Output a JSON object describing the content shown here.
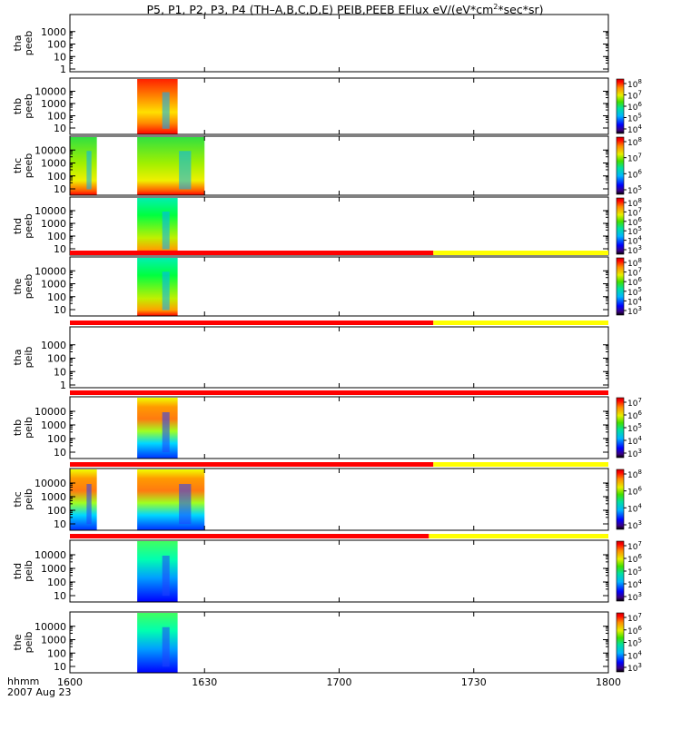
{
  "title_main": "P5, P1, P2, P3, P4 (TH–A,B,C,D,E) PEIB,PEEB EFlux eV/(eV*cm",
  "title_sup": "2",
  "title_tail": "*sec*sr)",
  "x_unit": "hhmm",
  "date": "2007 Aug 23",
  "chart_data": {
    "type": "heatmap",
    "title": "P5, P1, P2, P3, P4 (TH-A,B,C,D,E) PEIB,PEEB EFlux eV/(eV*cm^2*sec*sr)",
    "xlim": [
      "16:00",
      "18:00"
    ],
    "x_ticks": [
      "1600",
      "1630",
      "1700",
      "1730",
      "1800"
    ],
    "y_scale": "log",
    "y_unit": "eV",
    "panels": [
      {
        "probe": "tha",
        "instrument": "peeb",
        "y_ticks": [
          "1",
          "10",
          "100",
          "1000"
        ],
        "colorbar_ticks": [],
        "data_intervals": [],
        "status_bar": false
      },
      {
        "probe": "thb",
        "instrument": "peeb",
        "y_ticks": [
          "10",
          "100",
          "1000",
          "10000"
        ],
        "colorbar_ticks": [
          {
            "b": "10",
            "e": "8"
          },
          {
            "b": "10",
            "e": "7"
          },
          {
            "b": "10",
            "e": "6"
          },
          {
            "b": "10",
            "e": "5"
          },
          {
            "b": "10",
            "e": "4"
          }
        ],
        "data_intervals": [
          [
            "16:15",
            "16:24"
          ]
        ],
        "status_bar": false
      },
      {
        "probe": "thc",
        "instrument": "peeb",
        "y_ticks": [
          "10",
          "100",
          "1000",
          "10000"
        ],
        "colorbar_ticks": [
          {
            "b": "10",
            "e": "8"
          },
          {
            "b": "10",
            "e": "7"
          },
          {
            "b": "10",
            "e": "6"
          },
          {
            "b": "10",
            "e": "5"
          }
        ],
        "data_intervals": [
          [
            "16:00",
            "16:06"
          ],
          [
            "16:15",
            "16:30"
          ]
        ],
        "status_bar": false
      },
      {
        "probe": "thd",
        "instrument": "peeb",
        "y_ticks": [
          "10",
          "100",
          "1000",
          "10000"
        ],
        "colorbar_ticks": [
          {
            "b": "10",
            "e": "8"
          },
          {
            "b": "10",
            "e": "7"
          },
          {
            "b": "10",
            "e": "6"
          },
          {
            "b": "10",
            "e": "5"
          },
          {
            "b": "10",
            "e": "4"
          },
          {
            "b": "10",
            "e": "3"
          }
        ],
        "data_intervals": [
          [
            "16:15",
            "16:24"
          ]
        ],
        "status_bar": false
      },
      {
        "probe": "the",
        "instrument": "peeb",
        "y_ticks": [
          "10",
          "100",
          "1000",
          "10000"
        ],
        "colorbar_ticks": [
          {
            "b": "10",
            "e": "8"
          },
          {
            "b": "10",
            "e": "7"
          },
          {
            "b": "10",
            "e": "6"
          },
          {
            "b": "10",
            "e": "5"
          },
          {
            "b": "10",
            "e": "4"
          },
          {
            "b": "10",
            "e": "3"
          }
        ],
        "data_intervals": [
          [
            "16:15",
            "16:24"
          ]
        ],
        "status_bar": true,
        "status_red_until": "17:21"
      },
      {
        "probe": "tha",
        "instrument": "peib",
        "y_ticks": [
          "1",
          "10",
          "100",
          "1000"
        ],
        "colorbar_ticks": [],
        "data_intervals": [],
        "status_bar": true,
        "status_red_until": "17:21"
      },
      {
        "probe": "thb",
        "instrument": "peib",
        "y_ticks": [
          "10",
          "100",
          "1000",
          "10000"
        ],
        "colorbar_ticks": [
          {
            "b": "10",
            "e": "7"
          },
          {
            "b": "10",
            "e": "6"
          },
          {
            "b": "10",
            "e": "5"
          },
          {
            "b": "10",
            "e": "4"
          },
          {
            "b": "10",
            "e": "3"
          }
        ],
        "data_intervals": [
          [
            "16:15",
            "16:24"
          ]
        ],
        "status_bar": true,
        "status_red_until": "18:00"
      },
      {
        "probe": "thc",
        "instrument": "peib",
        "y_ticks": [
          "10",
          "100",
          "1000",
          "10000"
        ],
        "colorbar_ticks": [
          {
            "b": "10",
            "e": "8"
          },
          {
            "b": "10",
            "e": "6"
          },
          {
            "b": "10",
            "e": "4"
          },
          {
            "b": "10",
            "e": "3"
          }
        ],
        "data_intervals": [
          [
            "16:00",
            "16:06"
          ],
          [
            "16:15",
            "16:30"
          ]
        ],
        "status_bar": true,
        "status_red_until": "17:21"
      },
      {
        "probe": "thd",
        "instrument": "peib",
        "y_ticks": [
          "10",
          "100",
          "1000",
          "10000"
        ],
        "colorbar_ticks": [
          {
            "b": "10",
            "e": "7"
          },
          {
            "b": "10",
            "e": "6"
          },
          {
            "b": "10",
            "e": "5"
          },
          {
            "b": "10",
            "e": "4"
          },
          {
            "b": "10",
            "e": "3"
          }
        ],
        "data_intervals": [
          [
            "16:15",
            "16:24"
          ]
        ],
        "status_bar": true,
        "status_red_until": "17:20"
      },
      {
        "probe": "the",
        "instrument": "peib",
        "y_ticks": [
          "10",
          "100",
          "1000",
          "10000"
        ],
        "colorbar_ticks": [
          {
            "b": "10",
            "e": "7"
          },
          {
            "b": "10",
            "e": "6"
          },
          {
            "b": "10",
            "e": "5"
          },
          {
            "b": "10",
            "e": "4"
          },
          {
            "b": "10",
            "e": "3"
          }
        ],
        "data_intervals": [
          [
            "16:15",
            "16:24"
          ]
        ],
        "status_bar": false
      }
    ]
  }
}
